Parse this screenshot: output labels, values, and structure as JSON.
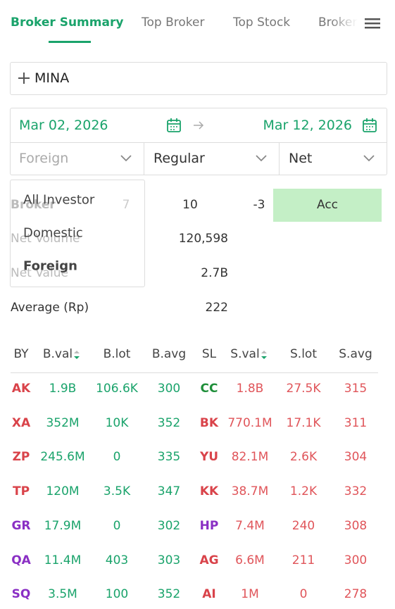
{
  "tabs": [
    "Broker Summary",
    "Top Broker",
    "Top Stock",
    "Broker"
  ],
  "search": {
    "value": "MINA"
  },
  "dates": {
    "from": "Mar 02, 2026",
    "to": "Mar 12, 2026"
  },
  "filters": [
    "Foreign",
    "Regular",
    "Net"
  ],
  "dropdown": [
    "All Investor",
    "Domestic",
    "Foreign"
  ],
  "summary": {
    "broker": {
      "label": "Broker",
      "values": [
        "7",
        "10",
        "-3"
      ],
      "status": "Acc"
    },
    "rows": [
      {
        "label": "Net Volume",
        "value": "120,598"
      },
      {
        "label": "Net Value",
        "value": "2.7B"
      },
      {
        "label": "Average (Rp)",
        "value": "222"
      }
    ]
  },
  "table": {
    "headers": [
      "BY",
      "B.val",
      "B.lot",
      "B.avg",
      "SL",
      "S.val",
      "S.lot",
      "S.avg"
    ],
    "rows": [
      {
        "by": "AK",
        "by_color": "#d9434a",
        "b": [
          "1.9B",
          "106.6K",
          "300"
        ],
        "sl": "CC",
        "sl_color": "#1f8f3a",
        "s": [
          "1.8B",
          "27.5K",
          "315"
        ]
      },
      {
        "by": "XA",
        "by_color": "#d9434a",
        "b": [
          "352M",
          "10K",
          "352"
        ],
        "sl": "BK",
        "sl_color": "#d9434a",
        "s": [
          "770.1M",
          "17.1K",
          "311"
        ]
      },
      {
        "by": "ZP",
        "by_color": "#d9434a",
        "b": [
          "245.6M",
          "0",
          "335"
        ],
        "sl": "YU",
        "sl_color": "#d9434a",
        "s": [
          "82.1M",
          "2.6K",
          "304"
        ]
      },
      {
        "by": "TP",
        "by_color": "#d9434a",
        "b": [
          "120M",
          "3.5K",
          "347"
        ],
        "sl": "KK",
        "sl_color": "#d9434a",
        "s": [
          "38.7M",
          "1.2K",
          "332"
        ]
      },
      {
        "by": "GR",
        "by_color": "#8a2fc4",
        "b": [
          "17.9M",
          "0",
          "302"
        ],
        "sl": "HP",
        "sl_color": "#8a2fc4",
        "s": [
          "7.4M",
          "240",
          "308"
        ]
      },
      {
        "by": "QA",
        "by_color": "#8a2fc4",
        "b": [
          "11.4M",
          "403",
          "303"
        ],
        "sl": "AG",
        "sl_color": "#d9434a",
        "s": [
          "6.6M",
          "211",
          "300"
        ]
      },
      {
        "by": "SQ",
        "by_color": "#8a2fc4",
        "b": [
          "3.5M",
          "100",
          "352"
        ],
        "sl": "AI",
        "sl_color": "#d9434a",
        "s": [
          "1M",
          "0",
          "278"
        ]
      }
    ]
  }
}
